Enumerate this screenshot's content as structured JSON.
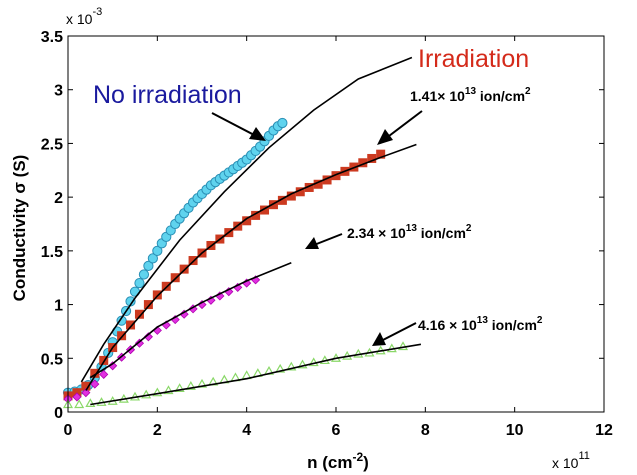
{
  "chart_data": {
    "type": "scatter",
    "xlabel_main": "n (cm",
    "xlabel_sup": "-2",
    "xlabel_close": ")",
    "ylabel": "Conductivity σ (S)",
    "x_exponent_prefix": "x 10",
    "x_exponent_power": "11",
    "y_exponent_prefix": "x 10",
    "y_exponent_power": "-3",
    "x_ticks": [
      "0",
      "2",
      "4",
      "6",
      "8",
      "10",
      "12"
    ],
    "y_ticks": [
      "0",
      "0.5",
      "1",
      "1.5",
      "2",
      "2.5",
      "3",
      "3.5"
    ],
    "xlim": [
      0,
      12
    ],
    "ylim": [
      0,
      3.5
    ],
    "grid": false,
    "legend": "none",
    "annotations": {
      "no_irradiation": "No irradiation",
      "irradiation": "Irradiation",
      "dose1": {
        "base": "1.41× 10",
        "power": "13",
        "unit": " ion/cm",
        "unit_power": "2"
      },
      "dose2": {
        "base": "2.34 × 10",
        "power": "13",
        "unit": " ion/cm",
        "unit_power": "2"
      },
      "dose3": {
        "base": "4.16 × 10",
        "power": "13",
        "unit": " ion/cm",
        "unit_power": "2"
      }
    },
    "colors": {
      "no_irradiation_text": "#1a1a9e",
      "irradiation_text": "#d42a1a",
      "cyan": "#5fd3ee",
      "red": "#cc3a20",
      "magenta": "#e030e0",
      "green": "#8ad868",
      "fit": "#000000"
    },
    "series": [
      {
        "marker": "circle",
        "color": "#5fd3ee",
        "x": [
          0.0,
          0.15,
          0.3,
          0.45,
          0.6,
          0.75,
          0.9,
          1.0,
          1.1,
          1.2,
          1.3,
          1.4,
          1.5,
          1.6,
          1.7,
          1.8,
          1.9,
          2.0,
          2.1,
          2.2,
          2.3,
          2.4,
          2.5,
          2.6,
          2.7,
          2.8,
          2.9,
          3.0,
          3.1,
          3.2,
          3.3,
          3.4,
          3.5,
          3.6,
          3.7,
          3.8,
          3.9,
          4.0,
          4.1,
          4.2,
          4.3,
          4.4,
          4.5,
          4.6,
          4.7,
          4.8
        ],
        "y": [
          0.18,
          0.19,
          0.21,
          0.25,
          0.32,
          0.42,
          0.55,
          0.65,
          0.75,
          0.85,
          0.94,
          1.03,
          1.12,
          1.2,
          1.28,
          1.36,
          1.43,
          1.5,
          1.57,
          1.63,
          1.69,
          1.75,
          1.8,
          1.85,
          1.9,
          1.95,
          1.99,
          2.03,
          2.07,
          2.11,
          2.14,
          2.17,
          2.2,
          2.23,
          2.26,
          2.29,
          2.32,
          2.35,
          2.39,
          2.43,
          2.47,
          2.52,
          2.57,
          2.62,
          2.66,
          2.69
        ]
      },
      {
        "marker": "square",
        "color": "#cc3a20",
        "x": [
          0.0,
          0.2,
          0.4,
          0.6,
          0.8,
          1.0,
          1.2,
          1.4,
          1.6,
          1.8,
          2.0,
          2.2,
          2.4,
          2.6,
          2.8,
          3.0,
          3.2,
          3.4,
          3.6,
          3.8,
          4.0,
          4.2,
          4.4,
          4.6,
          4.8,
          5.0,
          5.2,
          5.4,
          5.6,
          5.8,
          6.0,
          6.2,
          6.4,
          6.6,
          6.8,
          7.0
        ],
        "y": [
          0.15,
          0.18,
          0.24,
          0.36,
          0.48,
          0.6,
          0.71,
          0.81,
          0.91,
          1.0,
          1.09,
          1.17,
          1.25,
          1.33,
          1.41,
          1.48,
          1.55,
          1.61,
          1.67,
          1.73,
          1.78,
          1.83,
          1.88,
          1.93,
          1.97,
          2.01,
          2.05,
          2.09,
          2.12,
          2.16,
          2.2,
          2.24,
          2.28,
          2.32,
          2.36,
          2.4
        ]
      },
      {
        "marker": "diamond",
        "color": "#e030e0",
        "x": [
          0.0,
          0.2,
          0.4,
          0.6,
          0.8,
          1.0,
          1.2,
          1.4,
          1.6,
          1.8,
          2.0,
          2.2,
          2.4,
          2.6,
          2.8,
          3.0,
          3.2,
          3.4,
          3.6,
          3.8,
          4.0,
          4.2
        ],
        "y": [
          0.12,
          0.14,
          0.18,
          0.26,
          0.35,
          0.43,
          0.51,
          0.58,
          0.64,
          0.7,
          0.76,
          0.81,
          0.86,
          0.91,
          0.96,
          1.0,
          1.04,
          1.08,
          1.12,
          1.16,
          1.2,
          1.23
        ]
      },
      {
        "marker": "triangle",
        "color": "#8ad868",
        "x": [
          0.0,
          0.25,
          0.5,
          0.75,
          1.0,
          1.25,
          1.5,
          1.75,
          2.0,
          2.25,
          2.5,
          2.75,
          3.0,
          3.25,
          3.5,
          3.75,
          4.0,
          4.25,
          4.5,
          4.75,
          5.0,
          5.25,
          5.5,
          5.75,
          6.0,
          6.25,
          6.5,
          6.75,
          7.0,
          7.25,
          7.5
        ],
        "y": [
          0.07,
          0.07,
          0.08,
          0.09,
          0.1,
          0.12,
          0.14,
          0.16,
          0.18,
          0.2,
          0.22,
          0.24,
          0.26,
          0.28,
          0.3,
          0.32,
          0.34,
          0.36,
          0.38,
          0.4,
          0.42,
          0.44,
          0.46,
          0.48,
          0.5,
          0.52,
          0.54,
          0.55,
          0.57,
          0.59,
          0.61
        ]
      }
    ],
    "fits": [
      {
        "x": [
          0.3,
          0.8,
          1.5,
          2.5,
          3.5,
          4.5,
          5.5,
          6.5,
          7.7
        ],
        "y": [
          0.28,
          0.63,
          1.06,
          1.6,
          2.05,
          2.46,
          2.81,
          3.1,
          3.3
        ]
      },
      {
        "x": [
          0.4,
          1.0,
          2.0,
          3.0,
          4.0,
          5.0,
          6.0,
          7.0,
          7.8
        ],
        "y": [
          0.2,
          0.6,
          1.08,
          1.48,
          1.8,
          2.03,
          2.21,
          2.37,
          2.49
        ]
      },
      {
        "x": [
          0.5,
          1.0,
          2.0,
          3.0,
          4.0,
          5.0
        ],
        "y": [
          0.32,
          0.45,
          0.79,
          1.02,
          1.22,
          1.39
        ]
      },
      {
        "x": [
          0.5,
          2.0,
          4.0,
          6.0,
          7.9
        ],
        "y": [
          0.07,
          0.17,
          0.31,
          0.5,
          0.63
        ]
      }
    ]
  }
}
